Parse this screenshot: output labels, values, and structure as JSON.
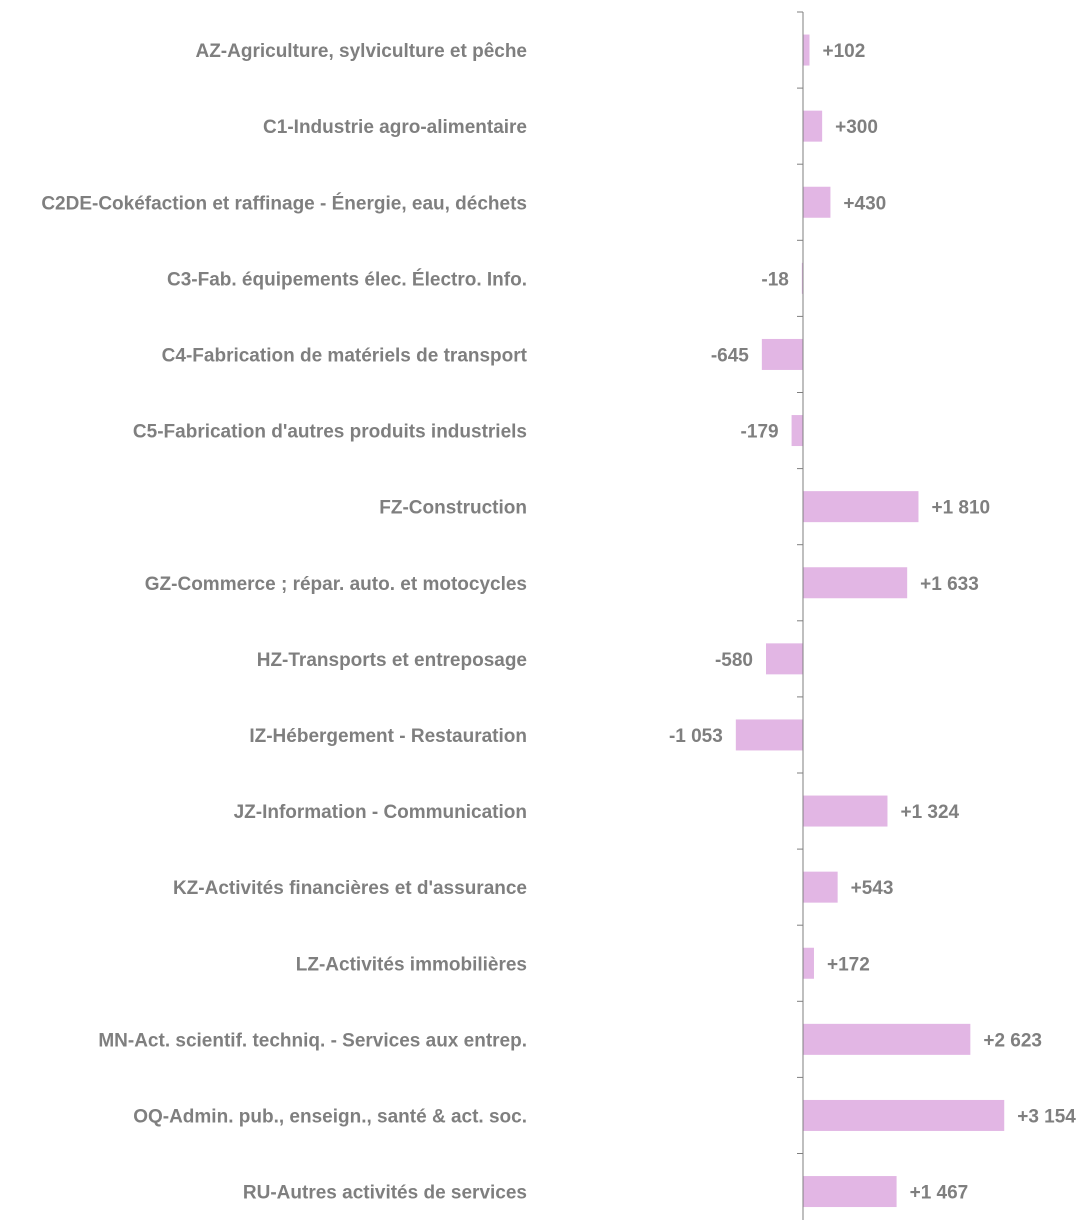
{
  "chart_data": {
    "type": "bar",
    "orientation": "horizontal",
    "title": "",
    "xlabel": "",
    "ylabel": "",
    "xlim": [
      -1500,
      3250
    ],
    "grid": false,
    "legend": "none",
    "bar_color": "#e2b6e4",
    "axis_color": "#7f7f7f",
    "text_color": "#7f7f7f",
    "categories": [
      "AZ-Agriculture, sylviculture et pêche",
      "C1-Industrie agro-alimentaire",
      "C2DE-Cokéfaction et raffinage - Énergie, eau, déchets",
      "C3-Fab. équipements élec. Électro. Info.",
      "C4-Fabrication de matériels de transport",
      "C5-Fabrication d'autres produits industriels",
      "FZ-Construction",
      "GZ-Commerce ; répar. auto. et  motocycles",
      "HZ-Transports et entreposage",
      "IZ-Hébergement - Restauration",
      "JZ-Information - Communication",
      "KZ-Activités financières et d'assurance",
      "LZ-Activités immobilières",
      "MN-Act. scientif. techniq. - Services aux entrep.",
      "OQ-Admin. pub., enseign., santé & act. soc.",
      "RU-Autres activités de services"
    ],
    "values": [
      102,
      300,
      430,
      -18,
      -645,
      -179,
      1810,
      1633,
      -580,
      -1053,
      1324,
      543,
      172,
      2623,
      3154,
      1467
    ],
    "value_labels": [
      "+102",
      "+300",
      "+430",
      "-18",
      "-645",
      "-179",
      "+1 810",
      "+1 633",
      "-580",
      "-1 053",
      "+1 324",
      "+543",
      "+172",
      "+2 623",
      "+3 154",
      "+1 467"
    ]
  }
}
